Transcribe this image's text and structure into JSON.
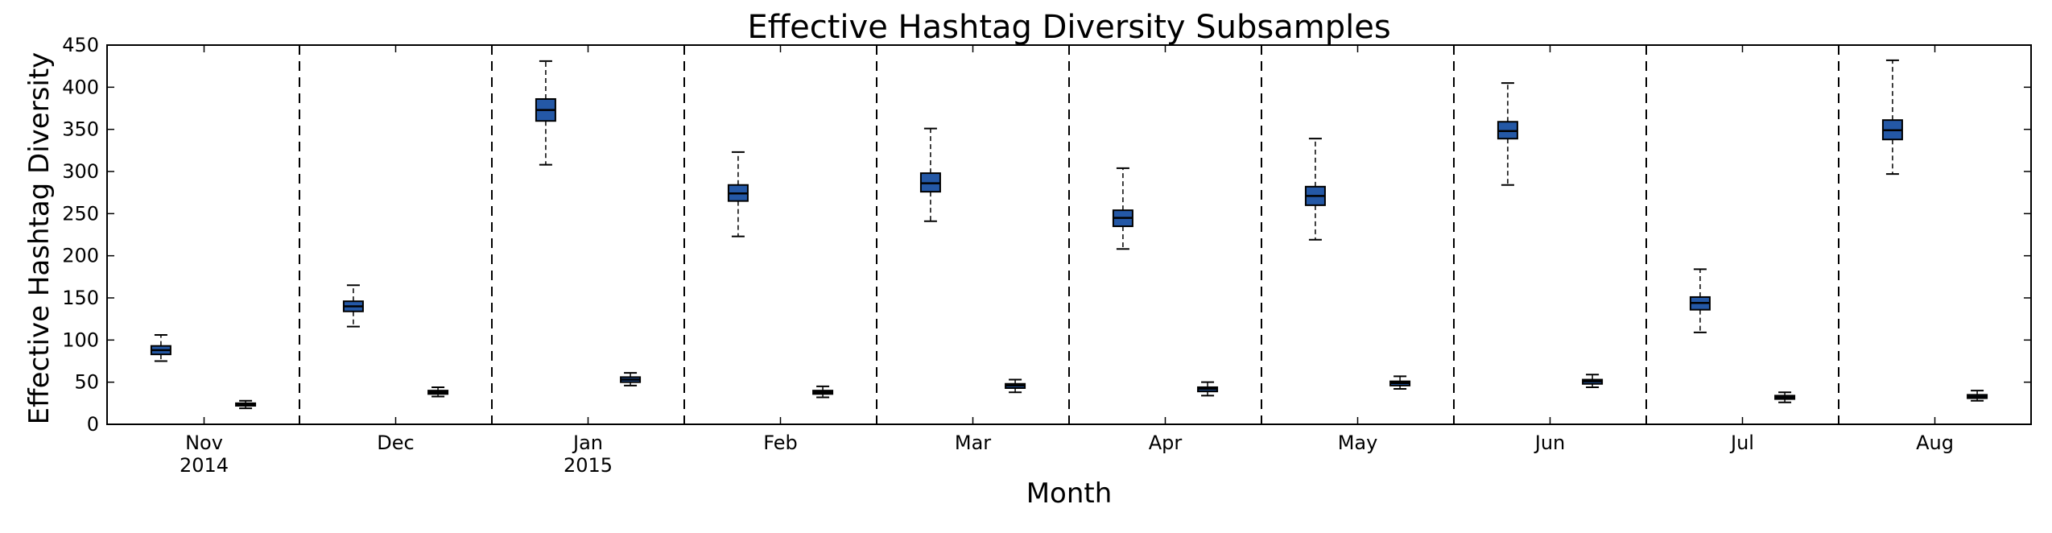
{
  "chart_data": {
    "type": "boxplot",
    "title": "Effective Hashtag Diversity Subsamples",
    "xlabel": "Month",
    "ylabel": "Effective Hashtag Diversity",
    "ylim": [
      0,
      450
    ],
    "yticks": [
      0,
      50,
      100,
      150,
      200,
      250,
      300,
      350,
      400,
      450
    ],
    "grid": false,
    "categories": [
      {
        "label": "Nov",
        "sublabel": "2014"
      },
      {
        "label": "Dec",
        "sublabel": ""
      },
      {
        "label": "Jan",
        "sublabel": "2015"
      },
      {
        "label": "Feb",
        "sublabel": ""
      },
      {
        "label": "Mar",
        "sublabel": ""
      },
      {
        "label": "Apr",
        "sublabel": ""
      },
      {
        "label": "May",
        "sublabel": ""
      },
      {
        "label": "Jun",
        "sublabel": ""
      },
      {
        "label": "Jul",
        "sublabel": ""
      },
      {
        "label": "Aug",
        "sublabel": ""
      }
    ],
    "series": [
      {
        "color": "#2458a6",
        "boxes": [
          {
            "whislo": 75,
            "q1": 83,
            "med": 88,
            "q3": 93,
            "whishi": 106
          },
          {
            "whislo": 116,
            "q1": 134,
            "med": 140,
            "q3": 146,
            "whishi": 165
          },
          {
            "whislo": 308,
            "q1": 360,
            "med": 373,
            "q3": 386,
            "whishi": 431
          },
          {
            "whislo": 223,
            "q1": 265,
            "med": 274,
            "q3": 284,
            "whishi": 323
          },
          {
            "whislo": 241,
            "q1": 276,
            "med": 286,
            "q3": 298,
            "whishi": 351
          },
          {
            "whislo": 208,
            "q1": 235,
            "med": 245,
            "q3": 254,
            "whishi": 304
          },
          {
            "whislo": 219,
            "q1": 260,
            "med": 271,
            "q3": 282,
            "whishi": 339
          },
          {
            "whislo": 284,
            "q1": 339,
            "med": 348,
            "q3": 359,
            "whishi": 405
          },
          {
            "whislo": 109,
            "q1": 136,
            "med": 144,
            "q3": 151,
            "whishi": 184
          },
          {
            "whislo": 297,
            "q1": 338,
            "med": 349,
            "q3": 361,
            "whishi": 432
          }
        ]
      },
      {
        "color": "#2458a6",
        "boxes": [
          {
            "whislo": 19,
            "q1": 22,
            "med": 24,
            "q3": 25,
            "whishi": 28
          },
          {
            "whislo": 33,
            "q1": 36,
            "med": 38,
            "q3": 40,
            "whishi": 44
          },
          {
            "whislo": 46,
            "q1": 50,
            "med": 53,
            "q3": 56,
            "whishi": 61
          },
          {
            "whislo": 32,
            "q1": 36,
            "med": 38,
            "q3": 40,
            "whishi": 45
          },
          {
            "whislo": 38,
            "q1": 43,
            "med": 46,
            "q3": 48,
            "whishi": 53
          },
          {
            "whislo": 34,
            "q1": 39,
            "med": 42,
            "q3": 44,
            "whishi": 50
          },
          {
            "whislo": 42,
            "q1": 46,
            "med": 49,
            "q3": 51,
            "whishi": 57
          },
          {
            "whislo": 44,
            "q1": 48,
            "med": 51,
            "q3": 53,
            "whishi": 59
          },
          {
            "whislo": 26,
            "q1": 30,
            "med": 32,
            "q3": 34,
            "whishi": 38
          },
          {
            "whislo": 28,
            "q1": 31,
            "med": 33,
            "q3": 35,
            "whishi": 40
          }
        ]
      }
    ],
    "separators": "dashed vertical lines between months"
  }
}
